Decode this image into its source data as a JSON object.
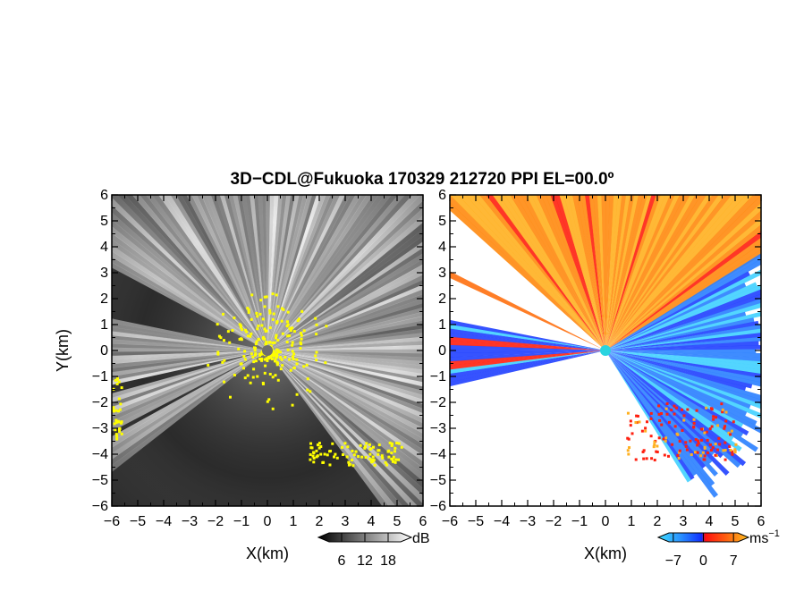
{
  "chart_data": [
    {
      "type": "heatmap",
      "title": "3D−CDL@Fukuoka 170329 212720 PPI EL=00.0º",
      "xlabel": "X(km)",
      "ylabel": "Y(km)",
      "xlim": [
        -6,
        6
      ],
      "ylim": [
        -6,
        6
      ],
      "x_ticks": [
        "−6",
        "−5",
        "−4",
        "−3",
        "−2",
        "−1",
        "0",
        "1",
        "2",
        "3",
        "4",
        "5",
        "6"
      ],
      "y_ticks": [
        "−6",
        "−5",
        "−4",
        "−3",
        "−2",
        "−1",
        "0",
        "1",
        "2",
        "3",
        "4",
        "5",
        "6"
      ],
      "colormap": "grayscale",
      "saturated_color": "#ffff00",
      "colorbar": {
        "unit": "dB",
        "ticks": [
          "6",
          "12",
          "18"
        ],
        "range": [
          0,
          24
        ]
      }
    },
    {
      "type": "heatmap",
      "xlabel": "X(km)",
      "xlim": [
        -6,
        6
      ],
      "ylim": [
        -6,
        6
      ],
      "x_ticks": [
        "−6",
        "−5",
        "−4",
        "−3",
        "−2",
        "−1",
        "0",
        "1",
        "2",
        "3",
        "4",
        "5",
        "6"
      ],
      "y_ticks": [
        "−6",
        "−5",
        "−4",
        "−3",
        "−2",
        "−1",
        "0",
        "1",
        "2",
        "3",
        "4",
        "5",
        "6"
      ],
      "colormap": "diverging blue-cyan / red-orange",
      "colors": {
        "negative_far": "#2040ff",
        "negative_near": "#40d0ff",
        "positive_near": "#ff2010",
        "positive_far": "#ffb020",
        "center": "#2ad4e0"
      },
      "colorbar": {
        "unit": "ms",
        "unit_exp": "−1",
        "ticks": [
          "−7",
          "0",
          "7"
        ],
        "range": [
          -10.5,
          10.5
        ]
      }
    }
  ]
}
